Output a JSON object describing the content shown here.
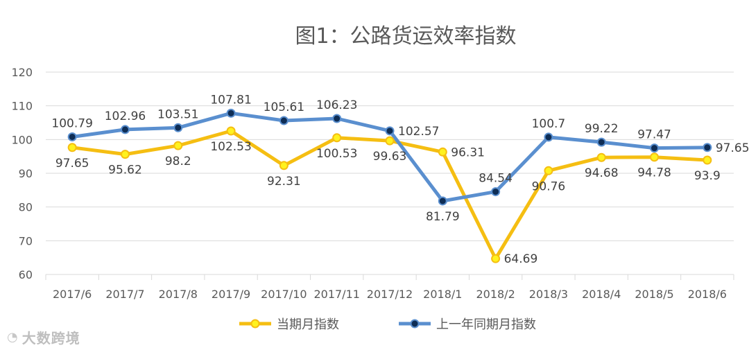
{
  "chart_data": {
    "type": "line",
    "title": "图1：公路货运效率指数",
    "categories": [
      "2017/6",
      "2017/7",
      "2017/8",
      "2017/9",
      "2017/10",
      "2017/11",
      "2017/12",
      "2018/1",
      "2018/2",
      "2018/3",
      "2018/4",
      "2018/5",
      "2018/6"
    ],
    "ylim": [
      60,
      120
    ],
    "yticks": [
      60,
      70,
      80,
      90,
      100,
      110,
      120
    ],
    "grid": true,
    "legend_position": "bottom",
    "series": [
      {
        "name": "当期月指数",
        "color": "#F5BE12",
        "marker_fill": "#FFF21F",
        "values": [
          97.65,
          95.62,
          98.2,
          102.53,
          92.31,
          100.53,
          99.63,
          96.31,
          64.69,
          90.76,
          94.68,
          94.78,
          93.9
        ]
      },
      {
        "name": "上一年同期月指数",
        "color": "#5A8FCF",
        "marker_fill": "#0E2D55",
        "values": [
          100.79,
          102.96,
          103.51,
          107.81,
          105.61,
          106.23,
          102.57,
          81.79,
          84.54,
          100.7,
          99.22,
          97.47,
          97.65
        ]
      }
    ],
    "data_labels": [
      [
        "97.65",
        "95.62",
        "98.2",
        "102.53",
        "92.31",
        "100.53",
        "99.63",
        "96.31",
        "64.69",
        "90.76",
        "94.68",
        "94.78",
        "93.9"
      ],
      [
        "100.79",
        "102.96",
        "103.51",
        "107.81",
        "105.61",
        "106.23",
        "102.57",
        "81.79",
        "84.54",
        "100.7",
        "99.22",
        "97.47",
        "97.65"
      ]
    ]
  },
  "watermark": {
    "logo_icon": "weibo-logo-icon",
    "text": "大数跨境"
  }
}
